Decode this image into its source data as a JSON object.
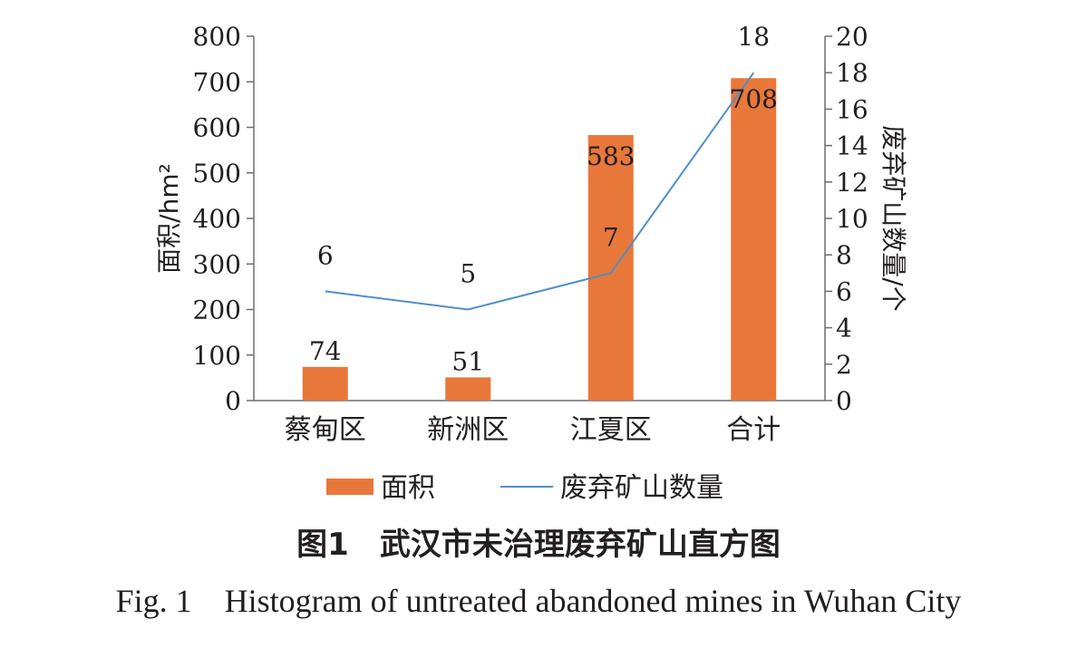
{
  "chart_data": {
    "type": "bar+line",
    "categories": [
      "蔡甸区",
      "新洲区",
      "江夏区",
      "合计"
    ],
    "series": [
      {
        "name": "面积",
        "type": "bar",
        "axis": "left",
        "color": "#e8773a",
        "values": [
          74,
          51,
          583,
          708
        ]
      },
      {
        "name": "废弃矿山数量",
        "type": "line",
        "axis": "right",
        "color": "#4f8fc9",
        "values": [
          6,
          5,
          7,
          18
        ]
      }
    ],
    "ylabel_left": "面积/hm²",
    "ylabel_right": "废弃矿山数量/个",
    "ylim_left": [
      0,
      800
    ],
    "ylim_right": [
      0,
      20
    ],
    "yticks_left": [
      0,
      100,
      200,
      300,
      400,
      500,
      600,
      700,
      800
    ],
    "yticks_right": [
      0,
      2,
      4,
      6,
      8,
      10,
      12,
      14,
      16,
      18,
      20
    ],
    "grid": false,
    "legend_position": "bottom"
  },
  "caption": {
    "chinese": "图1　武汉市未治理废弃矿山直方图",
    "english": "Fig. 1    Histogram of untreated abandoned mines in Wuhan City"
  }
}
